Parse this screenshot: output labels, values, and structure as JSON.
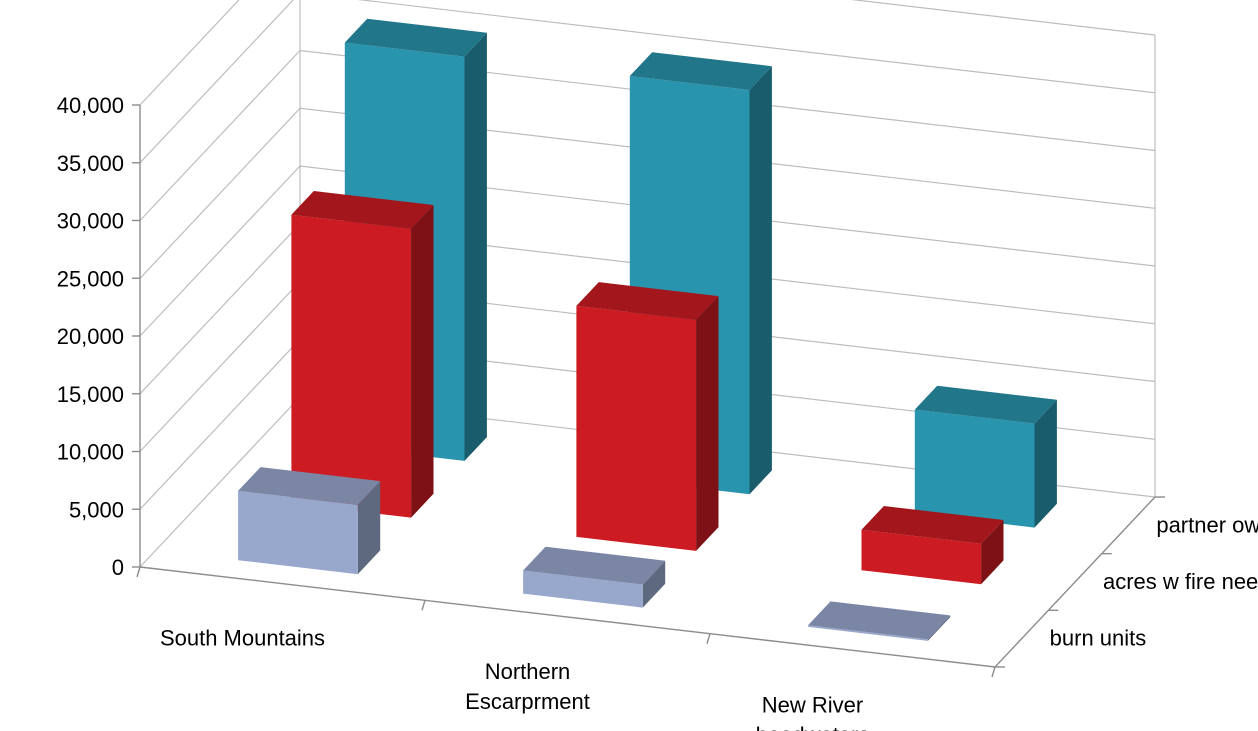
{
  "chart_data": {
    "type": "bar",
    "subtype": "3d-column",
    "title": "",
    "xlabel": "",
    "ylabel": "",
    "ylim": [
      0,
      40000
    ],
    "ytick_labels": [
      "0",
      "5,000",
      "10,000",
      "15,000",
      "20,000",
      "25,000",
      "30,000",
      "35,000",
      "40,000"
    ],
    "categories": [
      [
        "South Mountains"
      ],
      [
        "Northern",
        "Escarprment"
      ],
      [
        "New River",
        "headwaters"
      ]
    ],
    "series": [
      {
        "name": "burn units",
        "values": [
          6000,
          2000,
          100
        ],
        "color": "#98a7cc"
      },
      {
        "name": "acres w fire need",
        "values": [
          25000,
          20000,
          3500
        ],
        "color": "#cc1b22"
      },
      {
        "name": "partner owned  acres",
        "values": [
          35000,
          35000,
          9000
        ],
        "color": "#2994ad"
      }
    ],
    "grid": true
  }
}
